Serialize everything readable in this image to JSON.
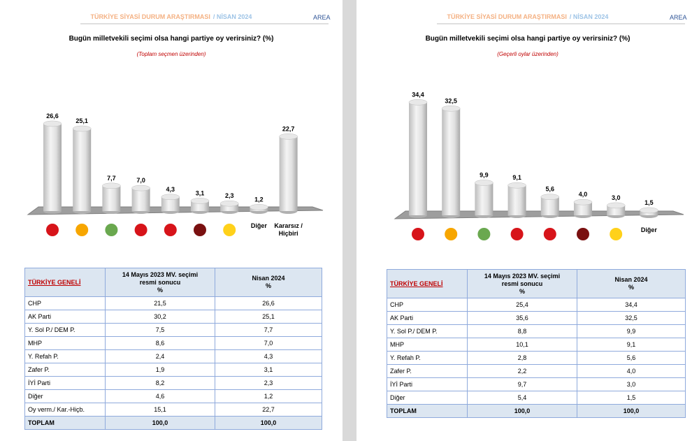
{
  "chart_data": [
    {
      "type": "bar",
      "title": "Bugün milletvekili seçimi olsa hangi partiye oy verirsiniz? (%)",
      "subtitle": "(Toplam seçmen üzerinden)",
      "categories": [
        null,
        null,
        null,
        null,
        null,
        null,
        null,
        "Diğer",
        "Kararsız / Hiçbiri"
      ],
      "values": [
        26.6,
        25.1,
        7.7,
        7.0,
        4.3,
        3.1,
        2.3,
        1.2,
        22.7
      ],
      "value_labels": [
        "26,6",
        "25,1",
        "7,7",
        "7,0",
        "4,3",
        "3,1",
        "2,3",
        "1,2",
        "22,7"
      ]
    },
    {
      "type": "bar",
      "title": "Bugün milletvekili seçimi olsa hangi partiye oy verirsiniz? (%)",
      "subtitle": "(Geçerli oylar üzerinden)",
      "categories": [
        null,
        null,
        null,
        null,
        null,
        null,
        null,
        "Diğer"
      ],
      "values": [
        34.4,
        32.5,
        9.9,
        9.1,
        5.6,
        4.0,
        3.0,
        1.5
      ],
      "value_labels": [
        "34,4",
        "32,5",
        "9,9",
        "9,1",
        "5,6",
        "4,0",
        "3,0",
        "1,5"
      ]
    }
  ],
  "pages": [
    {
      "header": {
        "title": "TÜRKİYE SİYASİ DURUM ARAŞTIRMASI",
        "date": "/ NİSAN 2024",
        "logo": "AREA"
      },
      "table": {
        "header": [
          [
            "TÜRKİYE GENELİ"
          ],
          [
            "14 Mayıs 2023 MV. seçimi",
            "resmi sonucu",
            "%"
          ],
          [
            "Nisan 2024",
            "%"
          ]
        ],
        "rows": [
          [
            "CHP",
            "21,5",
            "26,6"
          ],
          [
            "AK Parti",
            "30,2",
            "25,1"
          ],
          [
            "Y. Sol P./ DEM P.",
            "7,5",
            "7,7"
          ],
          [
            "MHP",
            "8,6",
            "7,0"
          ],
          [
            "Y. Refah P.",
            "2,4",
            "4,3"
          ],
          [
            "Zafer P.",
            "1,9",
            "3,1"
          ],
          [
            "İYİ Parti",
            "8,2",
            "2,3"
          ],
          [
            "Diğer",
            "4,6",
            "1,2"
          ],
          [
            "Oy verm./ Kar.-Hiçb.",
            "15,1",
            "22,7"
          ],
          [
            "TOPLAM",
            "100,0",
            "100,0"
          ]
        ]
      }
    },
    {
      "header": {
        "title": "TÜRKİYE SİYASİ DURUM ARAŞTIRMASI",
        "date": "/ NİSAN 2024",
        "logo": "AREA"
      },
      "table": {
        "header": [
          [
            "TÜRKİYE GENELİ"
          ],
          [
            "14 Mayıs 2023 MV. seçimi",
            "resmi sonucu",
            "%"
          ],
          [
            "Nisan 2024",
            "%"
          ]
        ],
        "rows": [
          [
            "CHP",
            "25,4",
            "34,4"
          ],
          [
            "AK Parti",
            "35,6",
            "32,5"
          ],
          [
            "Y. Sol P./ DEM P.",
            "8,8",
            "9,9"
          ],
          [
            "MHP",
            "10,1",
            "9,1"
          ],
          [
            "Y. Refah P.",
            "2,8",
            "5,6"
          ],
          [
            "Zafer P.",
            "2,2",
            "4,0"
          ],
          [
            "İYİ Parti",
            "9,7",
            "3,0"
          ],
          [
            "Diğer",
            "5,4",
            "1,5"
          ],
          [
            "TOPLAM",
            "100,0",
            "100,0"
          ]
        ]
      }
    }
  ]
}
